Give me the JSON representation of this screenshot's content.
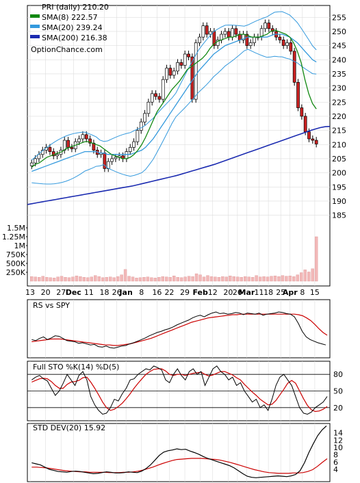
{
  "chart_data": [
    {
      "type": "candlestick",
      "panel": "price",
      "legend": [
        {
          "label": "PRI (daily) 210.20",
          "color": "#000000"
        },
        {
          "label": "SMA(8) 222.57",
          "color": "#118811"
        },
        {
          "label": "SMA(20) 239.24",
          "color": "#3399dd"
        },
        {
          "label": "SMA(200) 216.38",
          "color": "#1a2ab0"
        }
      ],
      "watermark": "OptionChance.com",
      "ylim": [
        182,
        257
      ],
      "y_ticks": [
        185,
        190,
        195,
        200,
        205,
        210,
        215,
        220,
        225,
        230,
        235,
        240,
        245,
        250,
        255
      ],
      "x_tick_labels": [
        "13",
        "20",
        "27",
        "Dec",
        "11",
        "18",
        "26",
        "Jan",
        "8",
        "16",
        "22",
        "29",
        "Feb",
        "12",
        "20",
        "26",
        "Mar",
        "11",
        "18",
        "25",
        "Apr",
        "8",
        "15"
      ],
      "colors": {
        "up": "#ffffff",
        "down": "#cc2222",
        "sma8": "#118811",
        "sma20": "#3399dd",
        "sma200": "#1a2ab0",
        "bollinger": "#ffd700",
        "grid": "#dddddd"
      },
      "closes": [
        203.5,
        205.0,
        206.5,
        208.0,
        209.0,
        207.5,
        206.0,
        206.5,
        208.0,
        211.5,
        209.0,
        208.5,
        211.0,
        212.0,
        213.5,
        212.0,
        210.5,
        208.0,
        206.5,
        207.0,
        201.5,
        204.0,
        205.0,
        205.5,
        206.0,
        205.0,
        207.5,
        209.0,
        211.0,
        215.0,
        218.0,
        221.0,
        225.0,
        228.0,
        227.0,
        226.0,
        233.0,
        237.0,
        234.5,
        236.0,
        239.0,
        238.0,
        242.0,
        241.0,
        226.0,
        246.0,
        248.0,
        252.0,
        249.0,
        250.0,
        245.0,
        247.0,
        249.0,
        250.0,
        248.0,
        251.0,
        249.0,
        247.0,
        249.0,
        245.0,
        246.0,
        248.0,
        248.0,
        251.0,
        253.0,
        251.0,
        250.0,
        248.0,
        247.0,
        245.0,
        246.0,
        243.0,
        232.0,
        223.0,
        220.0,
        214.5,
        212.0,
        211.5,
        210.2
      ],
      "sma8": [
        202.0,
        203.0,
        203.5,
        204.5,
        205.5,
        206.0,
        206.5,
        207.0,
        207.5,
        208.5,
        209.0,
        209.5,
        210.0,
        210.5,
        211.0,
        211.0,
        210.5,
        210.0,
        209.5,
        208.5,
        207.5,
        206.5,
        206.0,
        205.5,
        205.0,
        205.0,
        205.5,
        206.5,
        208.0,
        210.0,
        212.5,
        215.5,
        218.5,
        221.5,
        223.5,
        225.5,
        227.5,
        229.5,
        231.0,
        232.5,
        234.5,
        236.5,
        237.5,
        238.5,
        239.5,
        240.5,
        242.0,
        244.0,
        245.5,
        246.5,
        247.0,
        247.5,
        248.0,
        248.0,
        248.5,
        249.0,
        249.0,
        248.5,
        248.0,
        248.0,
        248.0,
        248.5,
        249.0,
        250.0,
        250.5,
        250.0,
        249.5,
        249.0,
        248.0,
        246.0,
        243.0,
        239.0,
        233.0,
        228.0,
        224.5,
        222.6
      ],
      "sma20": [
        200.5,
        201.0,
        201.5,
        202.0,
        202.5,
        203.0,
        203.5,
        204.0,
        204.5,
        205.0,
        205.5,
        206.0,
        206.5,
        207.0,
        207.5,
        207.5,
        207.5,
        207.5,
        207.0,
        207.0,
        206.5,
        206.5,
        206.5,
        206.5,
        206.5,
        206.5,
        206.5,
        207.0,
        207.5,
        208.0,
        209.0,
        210.5,
        212.0,
        214.0,
        216.0,
        218.0,
        220.0,
        222.0,
        224.0,
        226.0,
        228.0,
        230.0,
        232.0,
        234.0,
        236.0,
        237.5,
        239.0,
        240.5,
        242.0,
        243.0,
        244.0,
        245.0,
        245.5,
        246.0,
        246.5,
        247.0,
        247.5,
        248.0,
        248.0,
        248.0,
        248.0,
        248.0,
        248.0,
        248.5,
        249.0,
        249.0,
        249.0,
        248.5,
        248.0,
        247.0,
        246.0,
        244.5,
        243.0,
        241.5,
        240.0,
        239.2
      ],
      "sma200": [
        188.8,
        189.1,
        189.4,
        189.7,
        190.0,
        190.3,
        190.6,
        190.9,
        191.2,
        191.5,
        191.8,
        192.1,
        192.4,
        192.7,
        193.0,
        193.3,
        193.6,
        193.9,
        194.2,
        194.5,
        194.8,
        195.1,
        195.4,
        195.8,
        196.2,
        196.6,
        197.0,
        197.4,
        197.8,
        198.2,
        198.6,
        199.0,
        199.5,
        200.0,
        200.5,
        201.0,
        201.5,
        202.0,
        202.5,
        203.0,
        203.6,
        204.2,
        204.8,
        205.4,
        206.0,
        206.6,
        207.2,
        207.8,
        208.4,
        209.0,
        209.6,
        210.2,
        210.8,
        211.4,
        212.0,
        212.6,
        213.2,
        213.8,
        214.4,
        215.0,
        215.5,
        216.0,
        216.3,
        216.4
      ]
    },
    {
      "type": "bar",
      "panel": "volume",
      "y_tick_labels": [
        "1.5M",
        "1.25M",
        "1M",
        "750K",
        "500K",
        "250K"
      ],
      "y_tick_values": [
        1500000,
        1250000,
        1000000,
        750000,
        500000,
        250000
      ],
      "ylim": [
        0,
        1500000
      ],
      "values": [
        130000,
        120000,
        110000,
        140000,
        110000,
        100000,
        90000,
        120000,
        140000,
        110000,
        100000,
        120000,
        150000,
        130000,
        110000,
        100000,
        120000,
        160000,
        130000,
        100000,
        110000,
        120000,
        100000,
        130000,
        180000,
        330000,
        140000,
        120000,
        90000,
        100000,
        110000,
        120000,
        100000,
        90000,
        110000,
        130000,
        120000,
        110000,
        150000,
        110000,
        100000,
        120000,
        140000,
        130000,
        210000,
        180000,
        120000,
        160000,
        130000,
        120000,
        110000,
        130000,
        120000,
        150000,
        130000,
        120000,
        110000,
        130000,
        120000,
        110000,
        160000,
        120000,
        130000,
        120000,
        140000,
        150000,
        130000,
        160000,
        140000,
        150000,
        130000,
        180000,
        240000,
        320000,
        260000,
        350000,
        1250000
      ]
    },
    {
      "type": "line",
      "panel": "relative-strength",
      "title": "RS vs SPY",
      "series": [
        {
          "values": [
            0.3,
            0.28,
            0.32,
            0.35,
            0.3,
            0.33,
            0.37,
            0.36,
            0.32,
            0.28,
            0.27,
            0.26,
            0.23,
            0.24,
            0.22,
            0.2,
            0.21,
            0.17,
            0.16,
            0.18,
            0.15,
            0.14,
            0.16,
            0.18,
            0.19,
            0.22,
            0.24,
            0.27,
            0.3,
            0.33,
            0.37,
            0.4,
            0.43,
            0.45,
            0.48,
            0.5,
            0.53,
            0.57,
            0.6,
            0.63,
            0.66,
            0.7,
            0.73,
            0.75,
            0.72,
            0.76,
            0.79,
            0.81,
            0.78,
            0.79,
            0.77,
            0.78,
            0.8,
            0.79,
            0.76,
            0.79,
            0.78,
            0.77,
            0.79,
            0.75,
            0.77,
            0.78,
            0.79,
            0.81,
            0.8,
            0.78,
            0.77,
            0.72,
            0.6,
            0.45,
            0.35,
            0.3,
            0.27,
            0.24,
            0.22,
            0.2
          ],
          "color": "#000000"
        },
        {
          "values": [
            0.26,
            0.27,
            0.28,
            0.29,
            0.3,
            0.31,
            0.31,
            0.31,
            0.3,
            0.29,
            0.28,
            0.27,
            0.26,
            0.25,
            0.24,
            0.23,
            0.22,
            0.21,
            0.2,
            0.2,
            0.19,
            0.19,
            0.2,
            0.21,
            0.22,
            0.24,
            0.26,
            0.28,
            0.3,
            0.32,
            0.35,
            0.38,
            0.41,
            0.44,
            0.47,
            0.5,
            0.53,
            0.56,
            0.59,
            0.62,
            0.64,
            0.66,
            0.68,
            0.7,
            0.71,
            0.72,
            0.73,
            0.74,
            0.75,
            0.76,
            0.76,
            0.77,
            0.77,
            0.77,
            0.77,
            0.77,
            0.77,
            0.77,
            0.77,
            0.77,
            0.77,
            0.77,
            0.77,
            0.77,
            0.77,
            0.76,
            0.74,
            0.7,
            0.65,
            0.58,
            0.5,
            0.43,
            0.38
          ],
          "color": "#cc0000"
        }
      ]
    },
    {
      "type": "line",
      "panel": "stochastic",
      "title": "Full STO %K(14) %D(5)",
      "y_ticks": [
        20,
        50,
        80
      ],
      "ylim": [
        0,
        100
      ],
      "series": [
        {
          "values": [
            70,
            75,
            78,
            72,
            68,
            55,
            42,
            50,
            64,
            80,
            70,
            60,
            78,
            85,
            70,
            40,
            25,
            15,
            8,
            10,
            20,
            35,
            32,
            45,
            55,
            70,
            72,
            80,
            85,
            90,
            88,
            95,
            92,
            88,
            70,
            65,
            80,
            90,
            78,
            70,
            85,
            90,
            80,
            85,
            60,
            75,
            90,
            95,
            85,
            80,
            70,
            75,
            60,
            65,
            50,
            40,
            30,
            35,
            20,
            25,
            15,
            35,
            60,
            75,
            80,
            70,
            60,
            40,
            20,
            10,
            8,
            12,
            20,
            25,
            30,
            40
          ],
          "color": "#000000"
        },
        {
          "values": [
            66,
            69,
            72,
            73,
            72,
            67,
            60,
            55,
            55,
            62,
            66,
            67,
            69,
            74,
            75,
            66,
            55,
            43,
            30,
            20,
            15,
            17,
            22,
            28,
            36,
            45,
            55,
            64,
            72,
            80,
            85,
            89,
            90,
            90,
            86,
            80,
            78,
            80,
            80,
            78,
            80,
            82,
            83,
            84,
            80,
            77,
            79,
            82,
            85,
            85,
            82,
            79,
            74,
            70,
            62,
            55,
            48,
            42,
            35,
            30,
            25,
            26,
            33,
            43,
            53,
            64,
            69,
            64,
            50,
            36,
            24,
            16,
            13,
            14,
            17,
            22
          ],
          "color": "#cc0000"
        }
      ]
    },
    {
      "type": "line",
      "panel": "std-dev",
      "title": "STD DEV(20) 15.92",
      "y_ticks": [
        4,
        6,
        8,
        10,
        12,
        14
      ],
      "ylim": [
        1,
        16
      ],
      "series": [
        {
          "values": [
            5.8,
            5.5,
            5.2,
            4.6,
            4.0,
            3.7,
            3.4,
            3.3,
            3.2,
            3.4,
            3.5,
            3.4,
            3.2,
            3.0,
            2.8,
            2.9,
            3.1,
            3.3,
            3.2,
            3.0,
            3.0,
            3.1,
            3.3,
            3.2,
            3.1,
            3.5,
            4.2,
            5.2,
            6.5,
            7.8,
            8.7,
            9.1,
            9.3,
            9.6,
            9.4,
            9.5,
            9.0,
            8.6,
            8.1,
            7.5,
            7.0,
            6.6,
            6.2,
            5.8,
            5.4,
            5.0,
            4.4,
            3.6,
            2.8,
            2.1,
            1.8,
            1.7,
            1.8,
            1.9,
            2.0,
            2.1,
            2.2,
            2.1,
            2.0,
            2.2,
            2.6,
            3.6,
            5.8,
            8.6,
            11.0,
            13.2,
            14.8,
            15.9
          ],
          "color": "#000000"
        },
        {
          "values": [
            4.6,
            4.6,
            4.5,
            4.4,
            4.2,
            4.0,
            3.8,
            3.6,
            3.5,
            3.4,
            3.3,
            3.3,
            3.2,
            3.2,
            3.2,
            3.2,
            3.1,
            3.1,
            3.1,
            3.2,
            3.2,
            3.3,
            3.5,
            3.8,
            4.2,
            4.6,
            5.1,
            5.6,
            6.0,
            6.4,
            6.7,
            6.8,
            6.9,
            7.0,
            7.0,
            7.0,
            6.9,
            6.8,
            6.7,
            6.5,
            6.2,
            5.9,
            5.5,
            5.1,
            4.7,
            4.3,
            3.9,
            3.6,
            3.3,
            3.1,
            3.0,
            2.9,
            2.9,
            2.9,
            3.0,
            3.0,
            3.1,
            3.4,
            3.9,
            4.8,
            5.9,
            6.9
          ],
          "color": "#cc0000"
        }
      ]
    }
  ]
}
